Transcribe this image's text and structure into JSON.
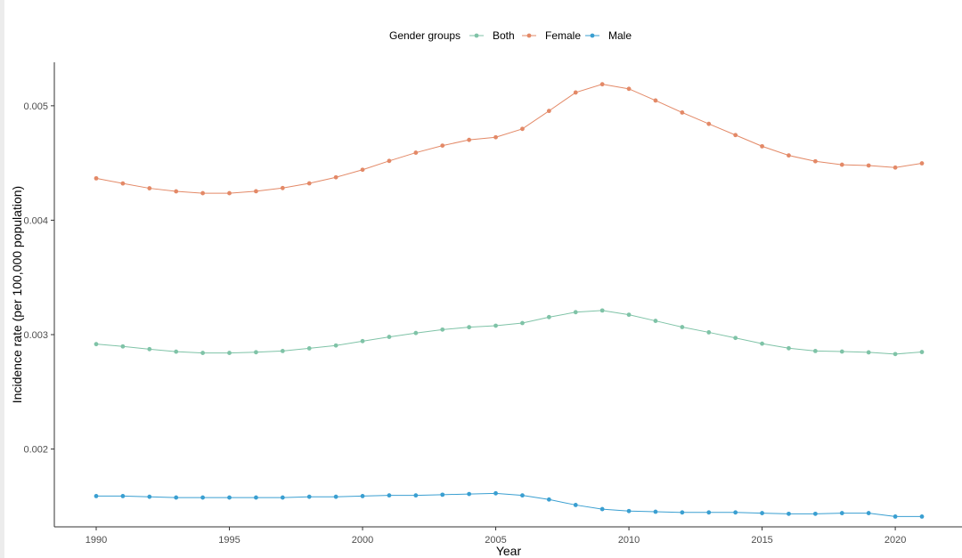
{
  "chart_data": {
    "type": "line",
    "xlabel": "Year",
    "ylabel": "Incidence rate (per 100,000 population)",
    "legend": {
      "title": "Gender groups",
      "position": "top"
    },
    "x": [
      1990,
      1991,
      1992,
      1993,
      1994,
      1995,
      1996,
      1997,
      1998,
      1999,
      2000,
      2001,
      2002,
      2003,
      2004,
      2005,
      2006,
      2007,
      2008,
      2009,
      2010,
      2011,
      2012,
      2013,
      2014,
      2015,
      2016,
      2017,
      2018,
      2019,
      2020,
      2021
    ],
    "xlim": [
      1990,
      2021
    ],
    "xticks": [
      1990,
      1995,
      2000,
      2005,
      2010,
      2015,
      2020
    ],
    "ylim": [
      0.00132,
      0.00538
    ],
    "yticks": [
      0.002,
      0.003,
      0.004,
      0.005
    ],
    "ytick_labels": [
      "0.002",
      "0.003",
      "0.004",
      "0.005"
    ],
    "grid": false,
    "series": [
      {
        "name": "Both",
        "color": "#7fc3a7",
        "values": [
          0.002917,
          0.002897,
          0.002873,
          0.002851,
          0.00284,
          0.00284,
          0.002846,
          0.002857,
          0.00288,
          0.002905,
          0.002943,
          0.00298,
          0.003014,
          0.003044,
          0.003065,
          0.003078,
          0.003101,
          0.003153,
          0.003196,
          0.003211,
          0.003174,
          0.00312,
          0.003066,
          0.00302,
          0.002971,
          0.002921,
          0.002881,
          0.002857,
          0.002852,
          0.002845,
          0.00283,
          0.002848
        ]
      },
      {
        "name": "Female",
        "color": "#e38967",
        "values": [
          0.004366,
          0.004321,
          0.004279,
          0.004252,
          0.004236,
          0.004236,
          0.004253,
          0.004281,
          0.004322,
          0.004375,
          0.004441,
          0.004518,
          0.00459,
          0.004652,
          0.004702,
          0.004725,
          0.004798,
          0.004955,
          0.005116,
          0.005188,
          0.005148,
          0.005046,
          0.004941,
          0.004842,
          0.004744,
          0.004646,
          0.004566,
          0.004515,
          0.004485,
          0.004478,
          0.00446,
          0.004497
        ]
      },
      {
        "name": "Male",
        "color": "#3a9fd1",
        "values": [
          0.001589,
          0.001589,
          0.001583,
          0.001576,
          0.001576,
          0.001576,
          0.001576,
          0.001576,
          0.001583,
          0.001583,
          0.001589,
          0.001595,
          0.001595,
          0.001601,
          0.001607,
          0.001613,
          0.001595,
          0.001559,
          0.001511,
          0.001475,
          0.001458,
          0.001452,
          0.001446,
          0.001446,
          0.001446,
          0.00144,
          0.001434,
          0.001434,
          0.00144,
          0.00144,
          0.00141,
          0.00141
        ]
      }
    ]
  }
}
